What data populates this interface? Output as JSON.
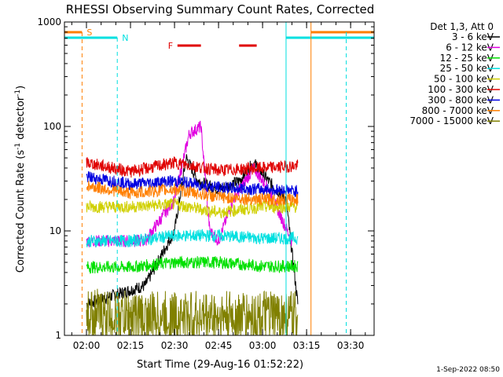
{
  "chart_data": {
    "type": "line",
    "title": "RHESSI Observing Summary Count Rates, Corrected",
    "xlabel": "Start Time (29-Aug-16 01:52:22)",
    "ylabel": "Corrected Count Rate (s",
    "ylabel_sup1": "-1",
    "ylabel_mid": " detector",
    "ylabel_sup2": "-1",
    "ylabel_end": ")",
    "yscale": "log",
    "ylim": [
      1,
      1000
    ],
    "xlim_minutes": [
      -7.5,
      98
    ],
    "x_ticks": [
      {
        "label": "02:00",
        "min": 0
      },
      {
        "label": "02:15",
        "min": 15
      },
      {
        "label": "02:30",
        "min": 30
      },
      {
        "label": "02:45",
        "min": 45
      },
      {
        "label": "03:00",
        "min": 60
      },
      {
        "label": "03:15",
        "min": 75
      },
      {
        "label": "03:30",
        "min": 90
      }
    ],
    "y_ticks": [
      {
        "label": "1",
        "v": 1
      },
      {
        "label": "10",
        "v": 10
      },
      {
        "label": "100",
        "v": 100
      },
      {
        "label": "1000",
        "v": 1000
      }
    ],
    "legend_header": "Det 1,3, Att 0",
    "series": [
      {
        "name": "3 - 6 keV",
        "color": "#000000",
        "values": [
          [
            0,
            2
          ],
          [
            20,
            3
          ],
          [
            30,
            10
          ],
          [
            34,
            50
          ],
          [
            38,
            30
          ],
          [
            45,
            25
          ],
          [
            52,
            30
          ],
          [
            57,
            45
          ],
          [
            62,
            30
          ],
          [
            68,
            20
          ],
          [
            72,
            2
          ]
        ]
      },
      {
        "name": "6 - 12 keV",
        "color": "#e000e0",
        "values": [
          [
            0,
            8
          ],
          [
            20,
            8
          ],
          [
            30,
            20
          ],
          [
            35,
            85
          ],
          [
            39,
            100
          ],
          [
            42,
            10
          ],
          [
            45,
            8
          ],
          [
            50,
            20
          ],
          [
            57,
            40
          ],
          [
            62,
            25
          ],
          [
            70,
            8
          ]
        ]
      },
      {
        "name": "12 - 25 keV",
        "color": "#00e000",
        "values": [
          [
            0,
            4.5
          ],
          [
            15,
            4.5
          ],
          [
            30,
            5
          ],
          [
            45,
            5
          ],
          [
            60,
            4.6
          ],
          [
            72,
            4.6
          ]
        ]
      },
      {
        "name": "25 - 50 keV",
        "color": "#00e0e0",
        "values": [
          [
            0,
            8
          ],
          [
            15,
            8
          ],
          [
            30,
            9
          ],
          [
            45,
            9
          ],
          [
            60,
            8.5
          ],
          [
            72,
            8.5
          ]
        ]
      },
      {
        "name": "50 - 100 keV",
        "color": "#d0d000",
        "values": [
          [
            0,
            17
          ],
          [
            15,
            17
          ],
          [
            30,
            18
          ],
          [
            45,
            15
          ],
          [
            60,
            17
          ],
          [
            72,
            17
          ]
        ]
      },
      {
        "name": "100 - 300 keV",
        "color": "#e00000",
        "values": [
          [
            0,
            45
          ],
          [
            15,
            37
          ],
          [
            30,
            45
          ],
          [
            45,
            38
          ],
          [
            60,
            40
          ],
          [
            72,
            42
          ]
        ]
      },
      {
        "name": "300 - 800 keV",
        "color": "#0000e0",
        "values": [
          [
            0,
            33
          ],
          [
            15,
            28
          ],
          [
            30,
            30
          ],
          [
            45,
            26
          ],
          [
            60,
            25
          ],
          [
            72,
            24
          ]
        ]
      },
      {
        "name": "800 - 7000 keV",
        "color": "#ff7f00",
        "values": [
          [
            0,
            27
          ],
          [
            15,
            23
          ],
          [
            30,
            25
          ],
          [
            45,
            21
          ],
          [
            60,
            20
          ],
          [
            72,
            20
          ]
        ]
      },
      {
        "name": "7000 - 15000 keV",
        "color": "#808000",
        "values": [
          [
            0,
            1.6
          ],
          [
            15,
            1.5
          ],
          [
            30,
            1.5
          ],
          [
            45,
            1.5
          ],
          [
            60,
            1.5
          ],
          [
            72,
            1.5
          ]
        ]
      }
    ],
    "annotations": {
      "s_label": "S",
      "n_label": "N",
      "f_label": "F",
      "s_color": "#ff7f00",
      "n_color": "#00e0e0",
      "f_color": "#e00000",
      "s_dashed_min": -1.5,
      "n_dashed_min": 10.5,
      "s_solid_min": 76.5,
      "n_solid_min": 68,
      "n_dashed2_min": 88.5,
      "f_segments_min": [
        [
          31,
          39
        ],
        [
          52,
          58
        ]
      ]
    },
    "grid": false,
    "legend_position": "right"
  },
  "footer": {
    "timestamp": "1-Sep-2022 08:50"
  }
}
